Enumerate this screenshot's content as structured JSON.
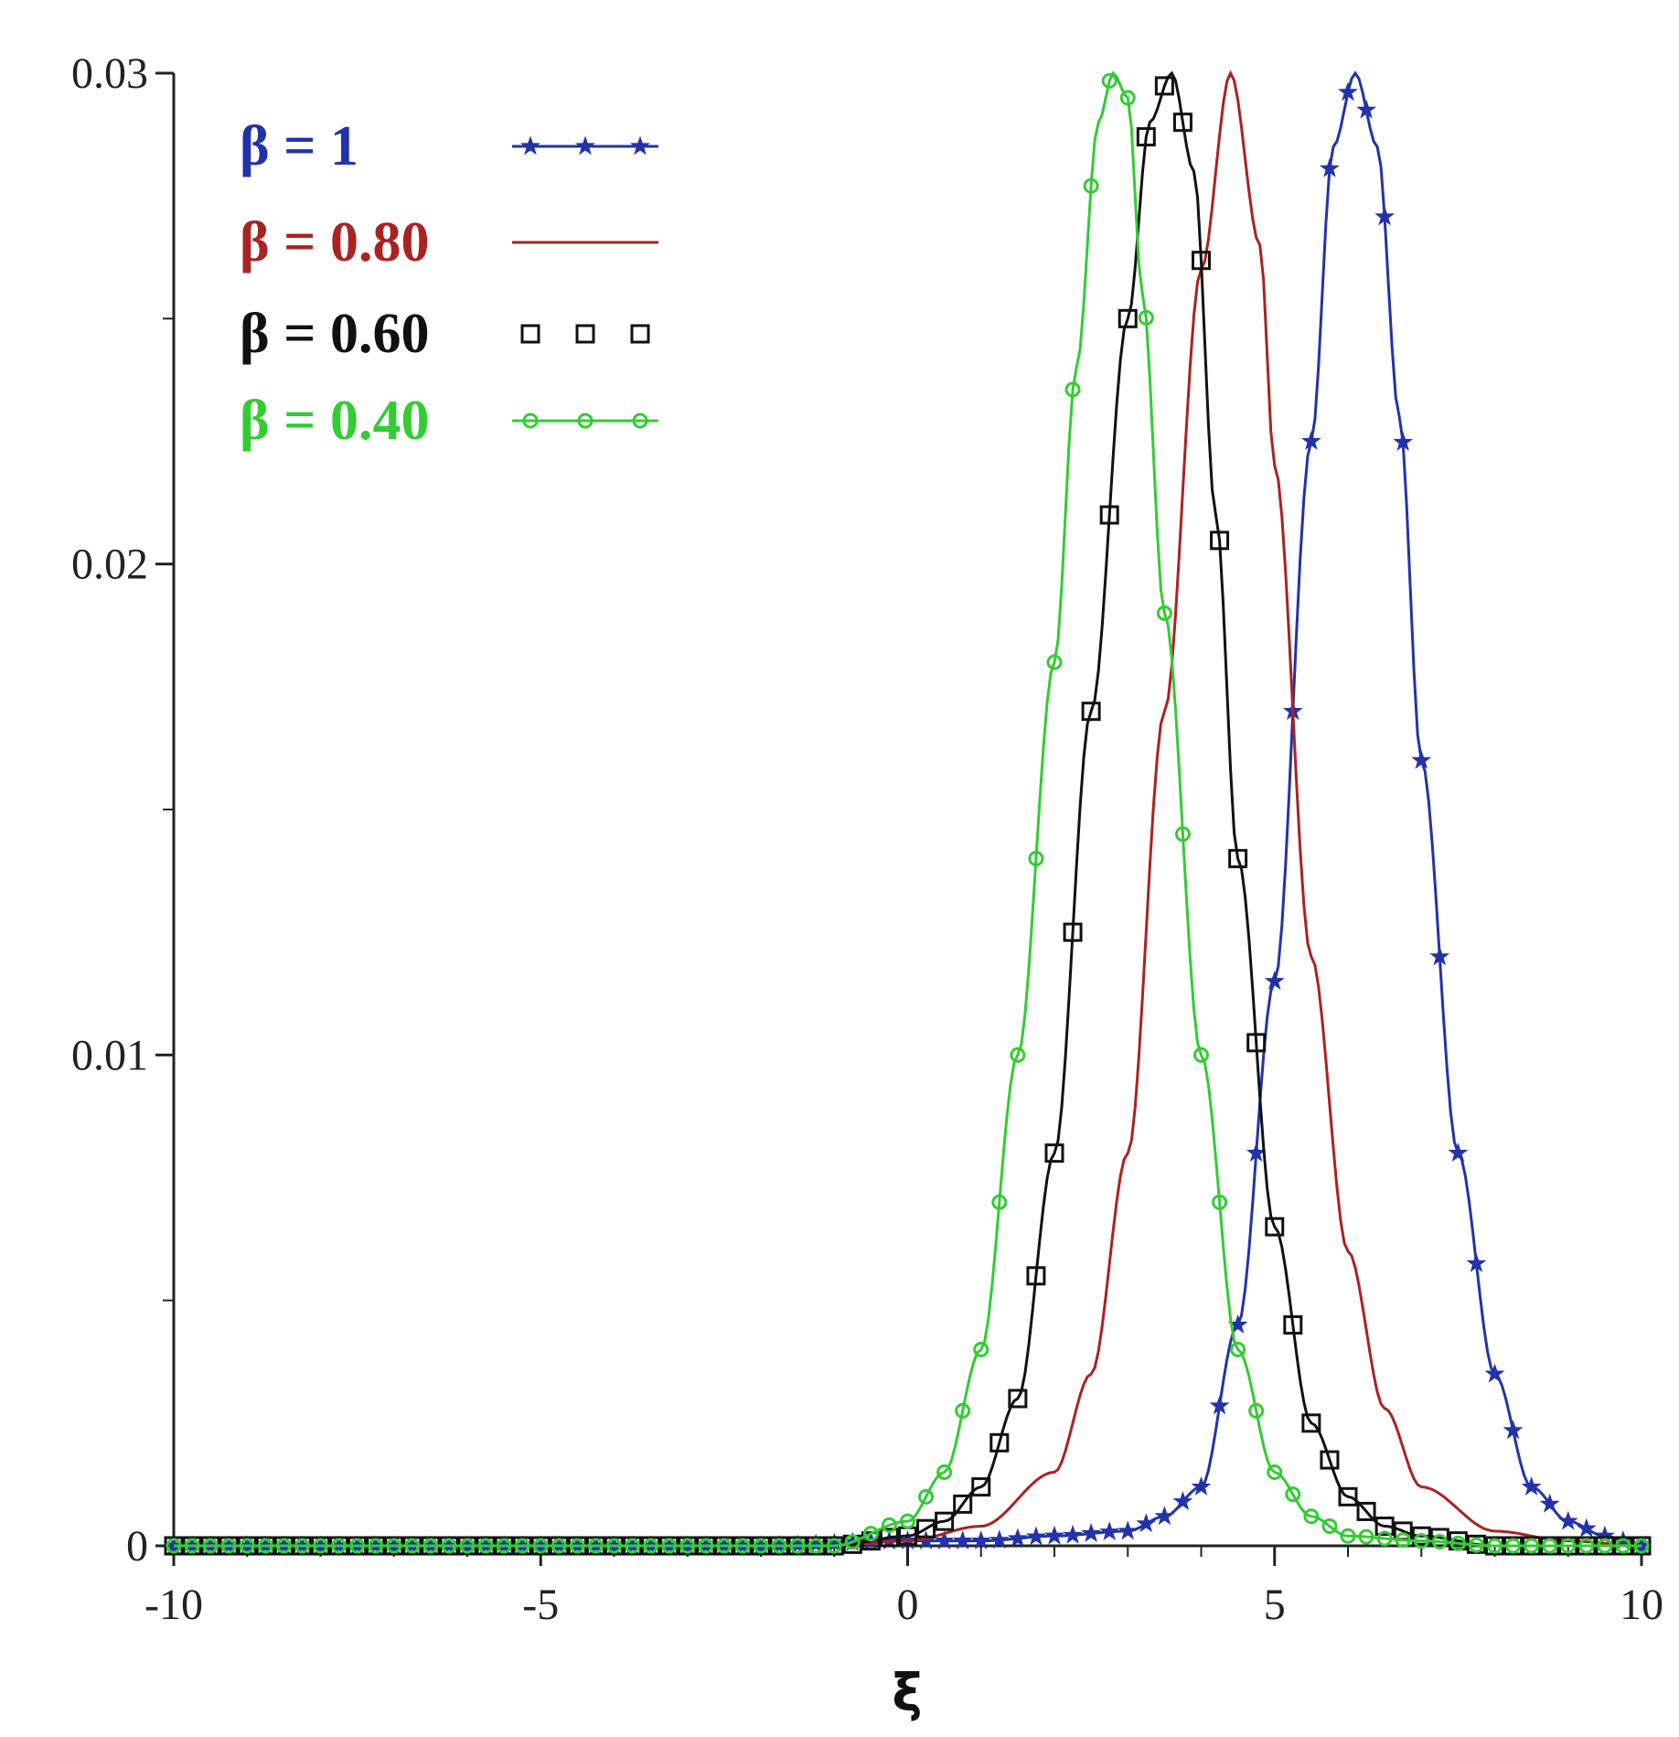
{
  "chart_data": {
    "type": "line",
    "title": "",
    "xlabel": "ξ",
    "ylabel": "",
    "xlim": [
      -10,
      10
    ],
    "ylim": [
      0,
      0.03
    ],
    "x_ticks": [
      -10,
      -5,
      0,
      5,
      10
    ],
    "x_tick_labels": [
      "-10",
      "-5",
      "0",
      "5",
      "10"
    ],
    "y_ticks": [
      0,
      0.01,
      0.02,
      0.03
    ],
    "y_tick_labels": [
      "0",
      "0.01",
      "0.02",
      "0.03"
    ],
    "grid": false,
    "legend_position": "top-left",
    "series": [
      {
        "name": "β = 1",
        "color": "#2233aa",
        "marker": "star",
        "x": [
          -10,
          -2,
          0,
          1,
          2,
          3,
          3.5,
          4,
          4.5,
          5,
          5.5,
          5.8,
          6.1,
          6.4,
          6.7,
          7,
          7.5,
          8,
          8.5,
          9,
          9.5,
          10
        ],
        "y": [
          0,
          0,
          0.0001,
          0.0001,
          0.0002,
          0.0003,
          0.0006,
          0.0012,
          0.0045,
          0.0115,
          0.0225,
          0.0285,
          0.03,
          0.0285,
          0.023,
          0.016,
          0.008,
          0.0035,
          0.0012,
          0.0005,
          0.0002,
          0
        ]
      },
      {
        "name": "β = 0.80",
        "color": "#aa2222",
        "marker": "none",
        "x": [
          -10,
          -1,
          0,
          1,
          2,
          2.5,
          3,
          3.5,
          4,
          4.4,
          4.8,
          5,
          5.5,
          6,
          6.5,
          7,
          8,
          9,
          10
        ],
        "y": [
          0,
          0,
          0.0001,
          0.0004,
          0.0015,
          0.0035,
          0.008,
          0.017,
          0.026,
          0.03,
          0.0265,
          0.022,
          0.012,
          0.006,
          0.0028,
          0.0012,
          0.0003,
          0.0001,
          0
        ]
      },
      {
        "name": "β = 0.60",
        "color": "#111111",
        "marker": "square",
        "x": [
          -10,
          -1,
          0,
          0.5,
          1,
          1.5,
          2,
          2.5,
          3,
          3.3,
          3.6,
          3.9,
          4.2,
          4.5,
          5,
          5.5,
          6,
          6.5,
          7,
          8,
          9,
          10
        ],
        "y": [
          0,
          0,
          0.0002,
          0.0005,
          0.0012,
          0.003,
          0.008,
          0.017,
          0.025,
          0.029,
          0.03,
          0.028,
          0.021,
          0.014,
          0.0065,
          0.0025,
          0.001,
          0.0004,
          0.0002,
          0,
          0,
          0
        ]
      },
      {
        "name": "β = 0.40",
        "color": "#33cc33",
        "marker": "circle",
        "x": [
          -10,
          -1,
          0,
          0.5,
          1,
          1.5,
          2,
          2.3,
          2.6,
          2.8,
          3.0,
          3.2,
          3.5,
          4,
          4.5,
          5,
          5.5,
          6,
          7,
          8,
          10
        ],
        "y": [
          0,
          0,
          0.0005,
          0.0015,
          0.004,
          0.01,
          0.018,
          0.024,
          0.029,
          0.03,
          0.0295,
          0.0255,
          0.019,
          0.01,
          0.004,
          0.0015,
          0.0006,
          0.0002,
          0.0001,
          0,
          0
        ]
      }
    ]
  }
}
